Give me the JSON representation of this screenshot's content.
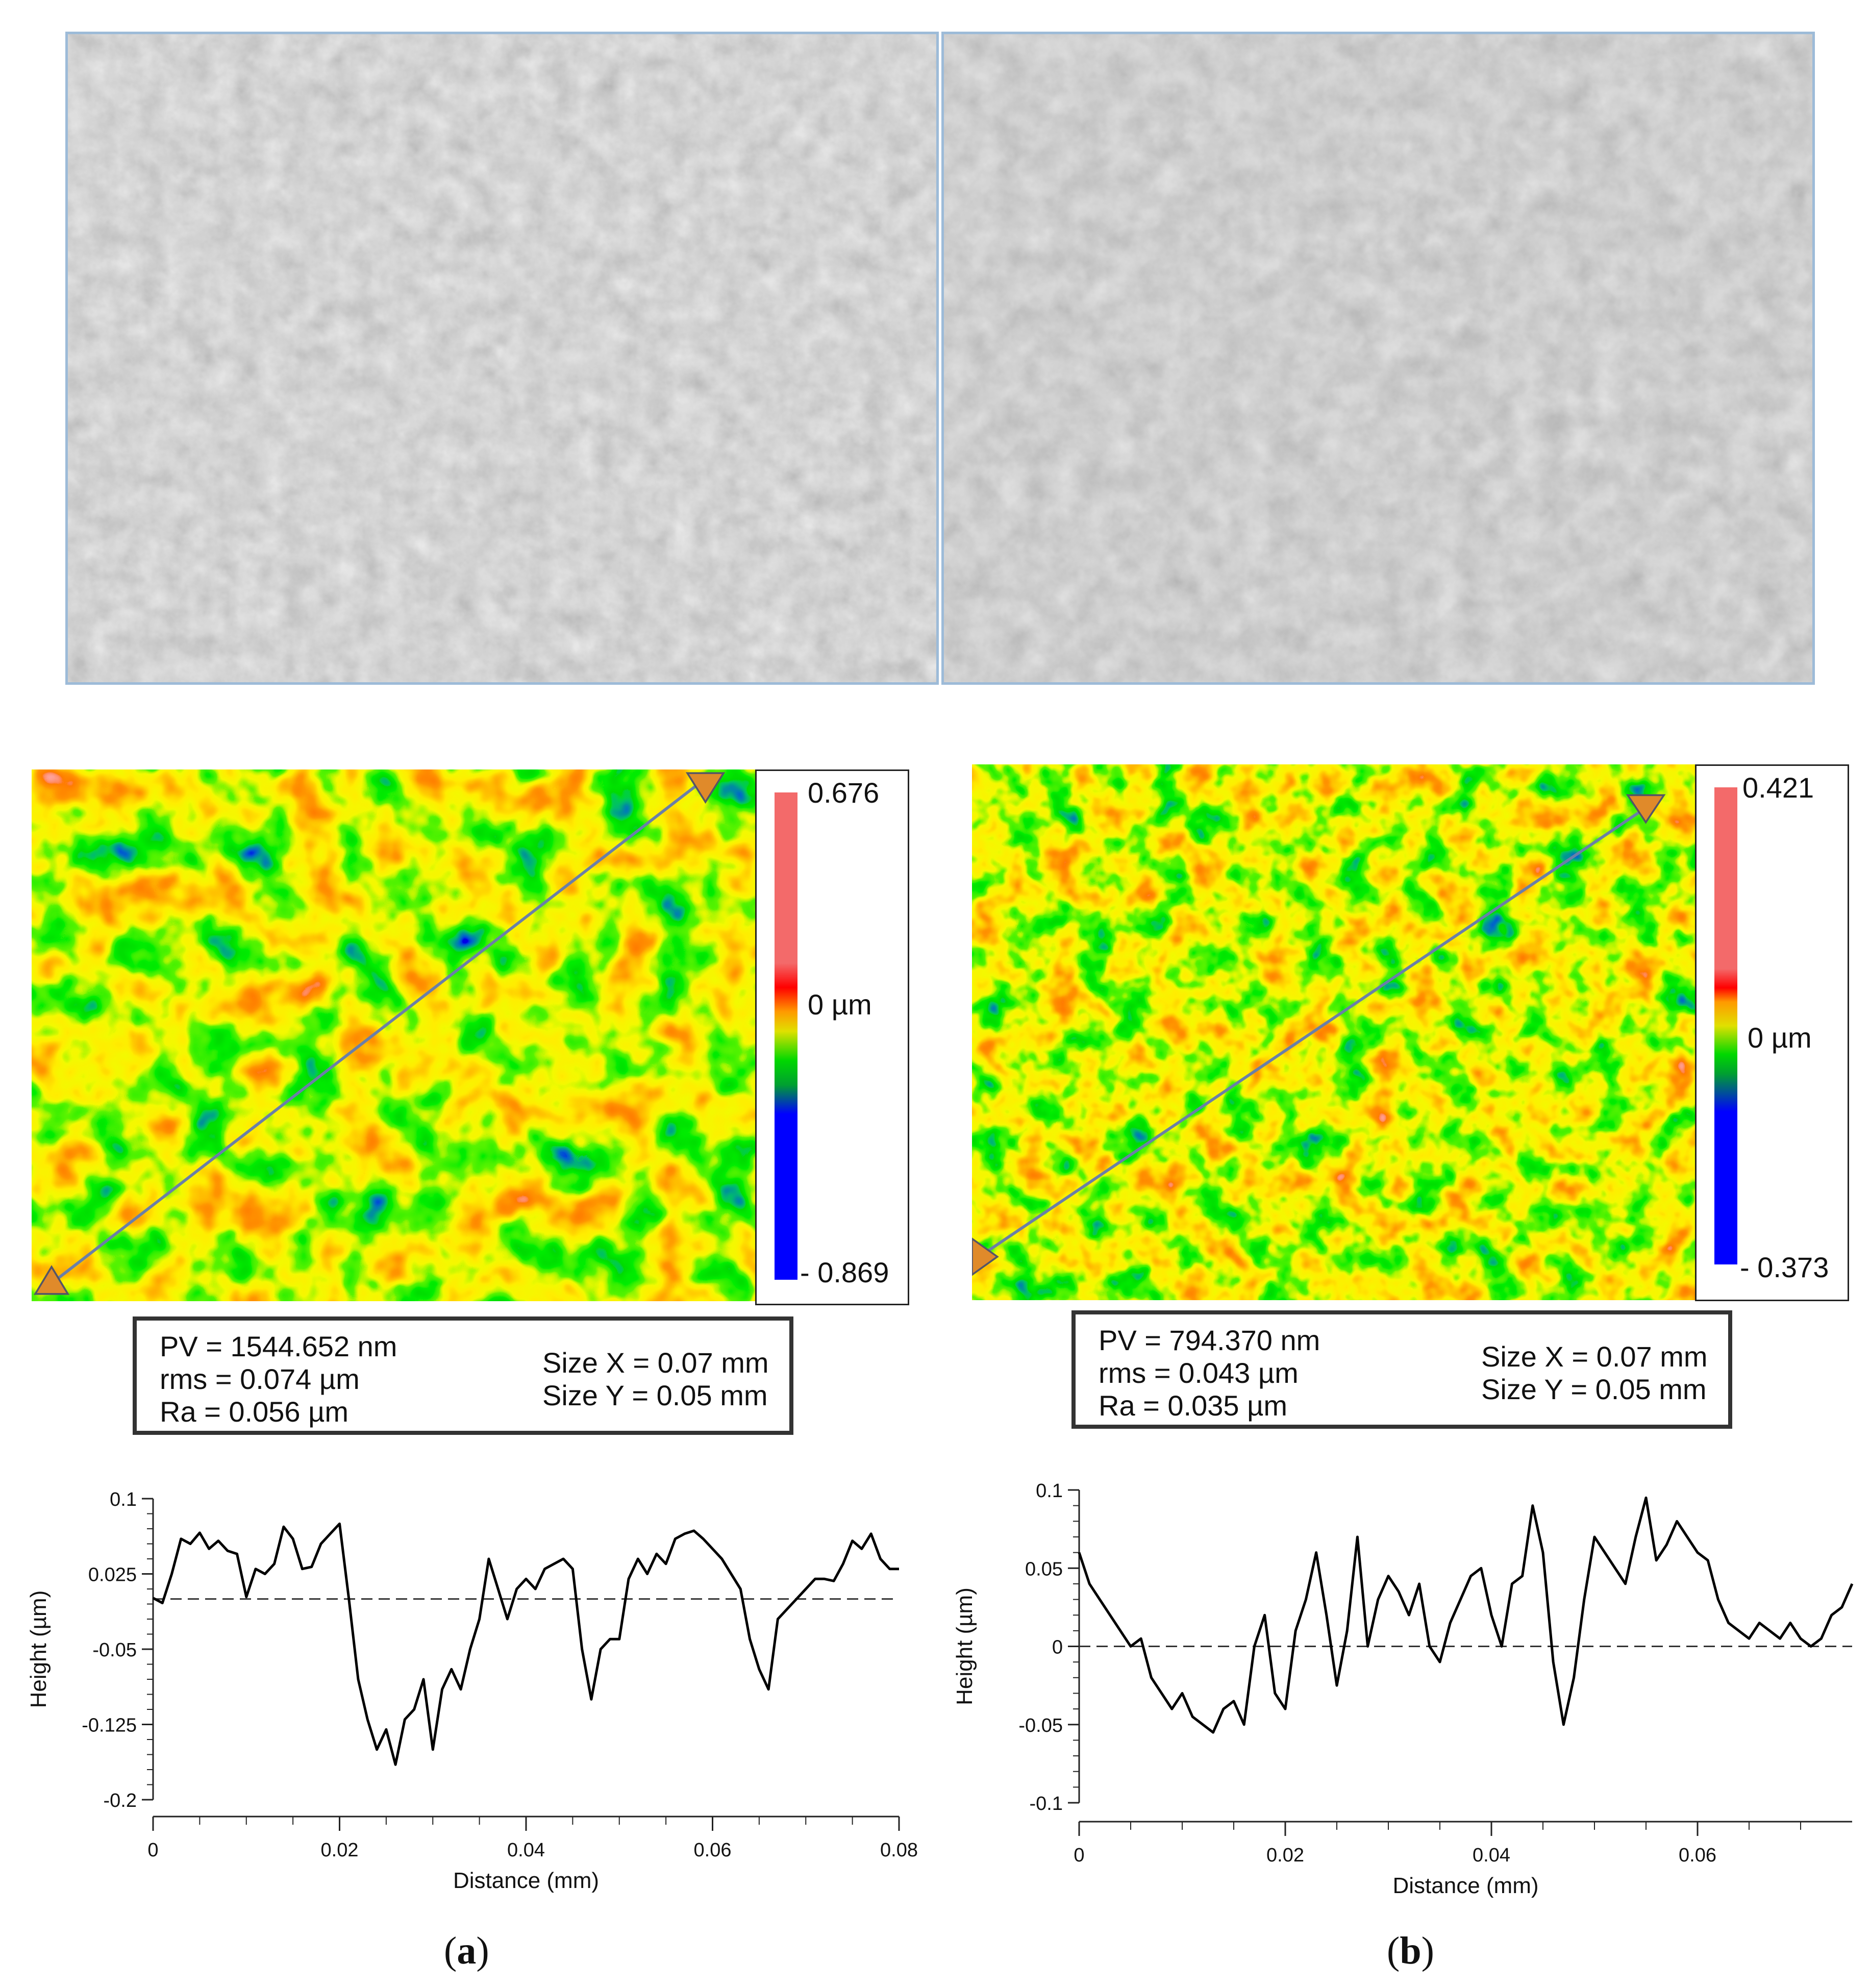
{
  "panels": [
    {
      "label_open": "(",
      "label_letter": "a",
      "label_close": ")",
      "colorbar": {
        "max": "0.676",
        "zero": "0  µm",
        "min": "- 0.869"
      },
      "stats": {
        "pv": "PV = 1544.652 nm",
        "rms": "rms = 0.074 µm",
        "ra": "Ra = 0.056 µm",
        "size_x": "Size X = 0.07 mm",
        "size_y": "Size Y = 0.05 mm"
      }
    },
    {
      "label_open": "(",
      "label_letter": "b",
      "label_close": ")",
      "colorbar": {
        "max": "0.421",
        "zero": "0  µm",
        "min": "- 0.373"
      },
      "stats": {
        "pv": "PV = 794.370 nm",
        "rms": "rms = 0.043 µm",
        "ra": "Ra = 0.035 µm",
        "size_x": "Size X = 0.07 mm",
        "size_y": "Size Y = 0.05 mm"
      }
    }
  ],
  "chart_data": [
    {
      "type": "line",
      "xlabel": "Distance (mm)",
      "ylabel": "Height (µm)",
      "xlim": [
        0,
        0.08
      ],
      "ylim": [
        -0.2,
        0.1
      ],
      "x_ticks": [
        "0",
        "0.02",
        "0.04",
        "0.06",
        "0.08"
      ],
      "y_ticks": [
        "0.1",
        "0.025",
        "-0.05",
        "-0.125",
        "-0.2"
      ],
      "reference_line_y": 0,
      "series": [
        {
          "x": [
            0,
            0.001,
            0.002,
            0.003,
            0.004,
            0.005,
            0.006,
            0.007,
            0.008,
            0.009,
            0.01,
            0.011,
            0.012,
            0.013,
            0.014,
            0.015,
            0.016,
            0.017,
            0.018,
            0.019,
            0.02,
            0.021,
            0.022,
            0.023,
            0.024,
            0.025,
            0.026,
            0.027,
            0.028,
            0.029,
            0.03,
            0.031,
            0.032,
            0.033,
            0.034,
            0.035,
            0.036,
            0.037,
            0.038,
            0.039,
            0.04,
            0.041,
            0.042,
            0.043,
            0.044,
            0.045,
            0.046,
            0.047,
            0.048,
            0.049,
            0.05,
            0.051,
            0.052,
            0.053,
            0.054,
            0.055,
            0.056,
            0.057,
            0.058,
            0.059,
            0.06,
            0.061,
            0.062,
            0.063,
            0.064,
            0.065,
            0.066,
            0.067,
            0.068,
            0.069,
            0.07,
            0.071,
            0.072,
            0.073,
            0.074,
            0.075,
            0.076,
            0.077,
            0.078,
            0.079,
            0.08
          ],
          "y": [
            0.001,
            -0.004,
            0.025,
            0.06,
            0.055,
            0.066,
            0.05,
            0.058,
            0.048,
            0.045,
            0.002,
            0.03,
            0.025,
            0.035,
            0.072,
            0.06,
            0.03,
            0.032,
            0.055,
            0.065,
            0.075,
            0.0,
            -0.08,
            -0.12,
            -0.15,
            -0.13,
            -0.165,
            -0.12,
            -0.11,
            -0.08,
            -0.15,
            -0.09,
            -0.07,
            -0.09,
            -0.05,
            -0.02,
            0.04,
            0.01,
            -0.02,
            0.01,
            0.02,
            0.01,
            0.03,
            0.035,
            0.04,
            0.03,
            -0.05,
            -0.1,
            -0.05,
            -0.04,
            -0.04,
            0.02,
            0.04,
            0.025,
            0.045,
            0.035,
            0.06,
            0.065,
            0.068,
            0.06,
            0.05,
            0.04,
            0.025,
            0.01,
            -0.04,
            -0.07,
            -0.09,
            -0.02,
            -0.01,
            0.0,
            0.01,
            0.02,
            0.02,
            0.018,
            0.035,
            0.058,
            0.05,
            0.065,
            0.04,
            0.03,
            0.03
          ]
        }
      ]
    },
    {
      "type": "line",
      "xlabel": "Distance (mm)",
      "ylabel": "Height (µm)",
      "xlim": [
        0,
        0.075
      ],
      "ylim": [
        -0.1,
        0.1
      ],
      "x_ticks": [
        "0",
        "0.02",
        "0.04",
        "0.06"
      ],
      "y_ticks": [
        "0.1",
        "0.05",
        "0",
        "-0.05",
        "-0.1"
      ],
      "reference_line_y": 0,
      "series": [
        {
          "x": [
            0,
            0.001,
            0.002,
            0.003,
            0.004,
            0.005,
            0.006,
            0.007,
            0.008,
            0.009,
            0.01,
            0.011,
            0.012,
            0.013,
            0.014,
            0.015,
            0.016,
            0.017,
            0.018,
            0.019,
            0.02,
            0.021,
            0.022,
            0.023,
            0.024,
            0.025,
            0.026,
            0.027,
            0.028,
            0.029,
            0.03,
            0.031,
            0.032,
            0.033,
            0.034,
            0.035,
            0.036,
            0.037,
            0.038,
            0.039,
            0.04,
            0.041,
            0.042,
            0.043,
            0.044,
            0.045,
            0.046,
            0.047,
            0.048,
            0.049,
            0.05,
            0.051,
            0.052,
            0.053,
            0.054,
            0.055,
            0.056,
            0.057,
            0.058,
            0.059,
            0.06,
            0.061,
            0.062,
            0.063,
            0.064,
            0.065,
            0.066,
            0.067,
            0.068,
            0.069,
            0.07,
            0.071,
            0.072,
            0.073,
            0.074,
            0.075
          ],
          "y": [
            0.06,
            0.04,
            0.03,
            0.02,
            0.01,
            0.0,
            0.005,
            -0.02,
            -0.03,
            -0.04,
            -0.03,
            -0.045,
            -0.05,
            -0.055,
            -0.04,
            -0.035,
            -0.05,
            0.0,
            0.02,
            -0.03,
            -0.04,
            0.01,
            0.03,
            0.06,
            0.02,
            -0.025,
            0.01,
            0.07,
            0.0,
            0.03,
            0.045,
            0.035,
            0.02,
            0.04,
            0.0,
            -0.01,
            0.015,
            0.03,
            0.045,
            0.05,
            0.02,
            0.0,
            0.04,
            0.045,
            0.09,
            0.06,
            -0.01,
            -0.05,
            -0.02,
            0.03,
            0.07,
            0.06,
            0.05,
            0.04,
            0.07,
            0.095,
            0.055,
            0.065,
            0.08,
            0.07,
            0.06,
            0.055,
            0.03,
            0.015,
            0.01,
            0.005,
            0.015,
            0.01,
            0.005,
            0.015,
            0.005,
            0.0,
            0.005,
            0.02,
            0.025,
            0.04
          ]
        }
      ]
    }
  ]
}
